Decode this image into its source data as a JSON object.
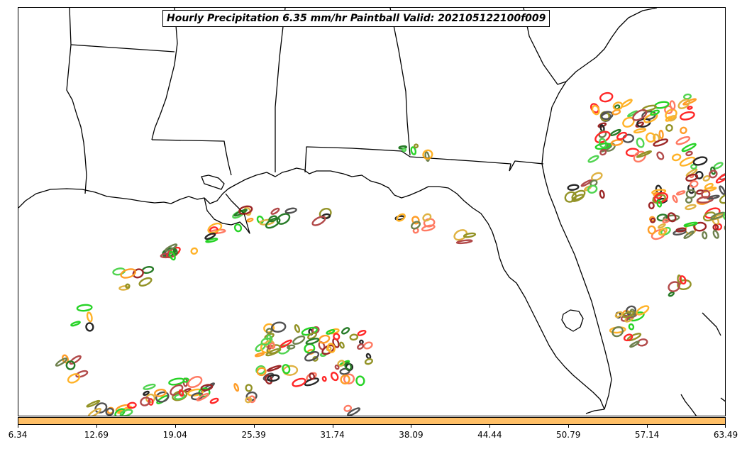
{
  "title": "Hourly Precipitation 6.35 mm/hr Paintball Valid: 202105122100f009",
  "colorbar": {
    "fill_color": "#ffbf66",
    "ticks": [
      "6.34",
      "12.69",
      "19.04",
      "25.39",
      "31.74",
      "38.09",
      "44.44",
      "50.79",
      "57.14",
      "63.49"
    ]
  },
  "member_colors": [
    "#ff0000",
    "#ff8c00",
    "#ffa500",
    "#8b0000",
    "#a52a2a",
    "#00cc00",
    "#006400",
    "#808000",
    "#556b2f",
    "#000000",
    "#333333",
    "#ff6347",
    "#daa520",
    "#32cd32"
  ]
}
